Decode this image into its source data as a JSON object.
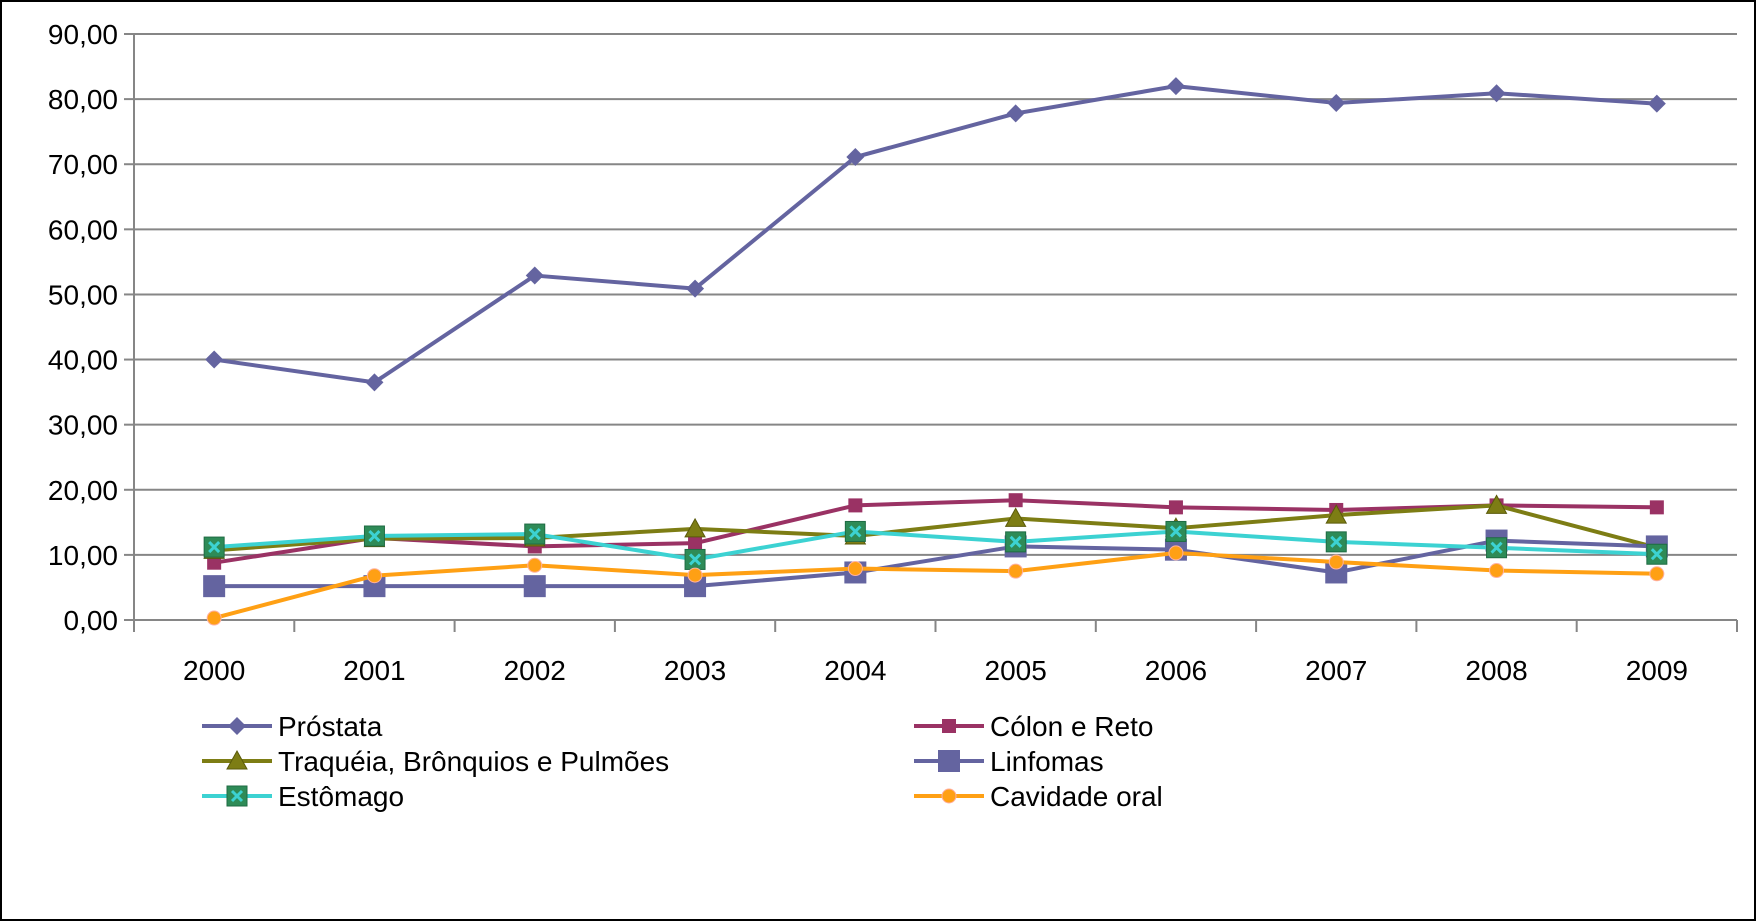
{
  "chart_data": {
    "type": "line",
    "title": "",
    "xlabel": "",
    "ylabel": "",
    "categories": [
      "2000",
      "2001",
      "2002",
      "2003",
      "2004",
      "2005",
      "2006",
      "2007",
      "2008",
      "2009"
    ],
    "ylim": [
      0,
      90
    ],
    "y_ticks": [
      "0,00",
      "10,00",
      "20,00",
      "30,00",
      "40,00",
      "50,00",
      "60,00",
      "70,00",
      "80,00",
      "90,00"
    ],
    "grid": true,
    "legend_position": "bottom",
    "series": [
      {
        "name": "Próstata",
        "color": "#6464a0",
        "marker": "diamond",
        "values": [
          40.0,
          36.5,
          52.9,
          50.9,
          71.1,
          77.8,
          82.0,
          79.4,
          80.9,
          79.3
        ]
      },
      {
        "name": "Cólon e Reto",
        "color": "#9a3264",
        "marker": "square-small",
        "values": [
          8.8,
          12.6,
          11.3,
          11.8,
          17.6,
          18.4,
          17.3,
          16.9,
          17.6,
          17.3
        ]
      },
      {
        "name": "Traquéia, Brônquios e Pulmões",
        "color": "#7d7d14",
        "marker": "triangle",
        "values": [
          10.7,
          12.5,
          12.6,
          14.0,
          12.9,
          15.6,
          14.1,
          16.1,
          17.6,
          11.1
        ]
      },
      {
        "name": "Linfomas",
        "color": "#6464a0",
        "marker": "square-large",
        "values": [
          5.2,
          5.2,
          5.2,
          5.2,
          7.3,
          11.3,
          10.8,
          7.3,
          12.2,
          11.3
        ]
      },
      {
        "name": "Estômago",
        "color": "#3cd2d2",
        "marker": "square-x",
        "values": [
          11.2,
          12.9,
          13.2,
          9.3,
          13.6,
          12.0,
          13.6,
          12.0,
          11.1,
          10.1
        ]
      },
      {
        "name": "Cavidade oral",
        "color": "#ffa014",
        "marker": "circle",
        "values": [
          0.3,
          6.8,
          8.4,
          6.9,
          7.9,
          7.5,
          10.3,
          8.9,
          7.6,
          7.1
        ]
      }
    ]
  }
}
